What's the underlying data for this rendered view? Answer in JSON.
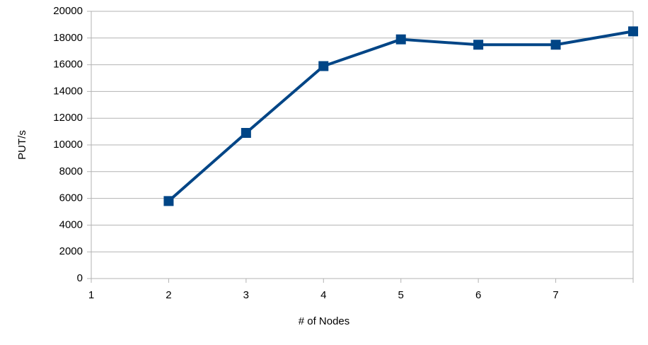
{
  "chart_data": {
    "type": "line",
    "x": [
      2,
      3,
      4,
      5,
      6,
      7,
      8
    ],
    "values": [
      5800,
      10900,
      15900,
      17900,
      17500,
      17500,
      18500
    ],
    "color": "#004586",
    "xlabel": "# of Nodes",
    "ylabel": "PUT/s",
    "xlim": [
      1,
      8
    ],
    "xticks": [
      1,
      2,
      3,
      4,
      5,
      6,
      7
    ],
    "ylim": [
      0,
      20000
    ],
    "yticks": [
      0,
      2000,
      4000,
      6000,
      8000,
      10000,
      12000,
      14000,
      16000,
      18000,
      20000
    ],
    "grid": true
  }
}
